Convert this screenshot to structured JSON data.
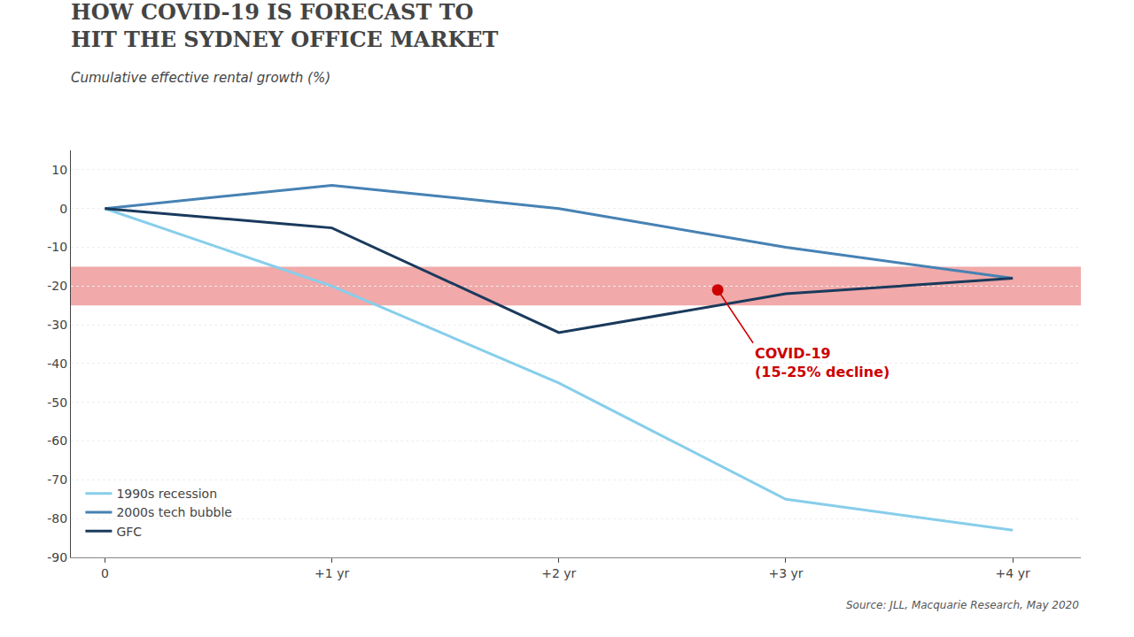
{
  "chart_data": {
    "type": "line",
    "title": [
      "HOW COVID-19 IS FORECAST TO",
      "HIT THE SYDNEY OFFICE MARKET"
    ],
    "subtitle": "Cumulative effective rental growth (%)",
    "source": "Source: JLL, Macquarie Research, May 2020",
    "x": [
      0,
      1,
      2,
      3,
      4
    ],
    "series": [
      {
        "name": "1990s recession",
        "color": "#87CEEB",
        "values": [
          0,
          -20,
          -45,
          -75,
          -83
        ]
      },
      {
        "name": "2000s tech bubble",
        "color": "#4682B4",
        "values": [
          0,
          6,
          0,
          -10,
          -18
        ]
      },
      {
        "name": "GFC",
        "color": "#1a3a5c",
        "values": [
          0,
          -5,
          -32,
          -22,
          -18
        ]
      }
    ],
    "xlim": [
      -0.15,
      4.3
    ],
    "xticks": [
      0,
      {
        "value": 1,
        "label": "+1 yr"
      },
      {
        "value": 2,
        "label": "+2 yr"
      },
      {
        "value": 3,
        "label": "+3 yr"
      },
      {
        "value": 4,
        "label": "+4 yr"
      }
    ],
    "ylim": [
      -90,
      15
    ],
    "yticks": [
      10,
      0,
      -10,
      -20,
      -30,
      -40,
      -50,
      -60,
      -70,
      -80,
      -90
    ],
    "grid": "y",
    "legend": "lower left",
    "bands": [
      {
        "low": -25,
        "high": -15,
        "color": "#e87070"
      }
    ],
    "annotations": [
      {
        "x": 2.7,
        "y": -21,
        "text": [
          "COVID-19",
          "(15-25% decline)"
        ],
        "color": "#cc0000",
        "marker": "circle"
      }
    ]
  }
}
